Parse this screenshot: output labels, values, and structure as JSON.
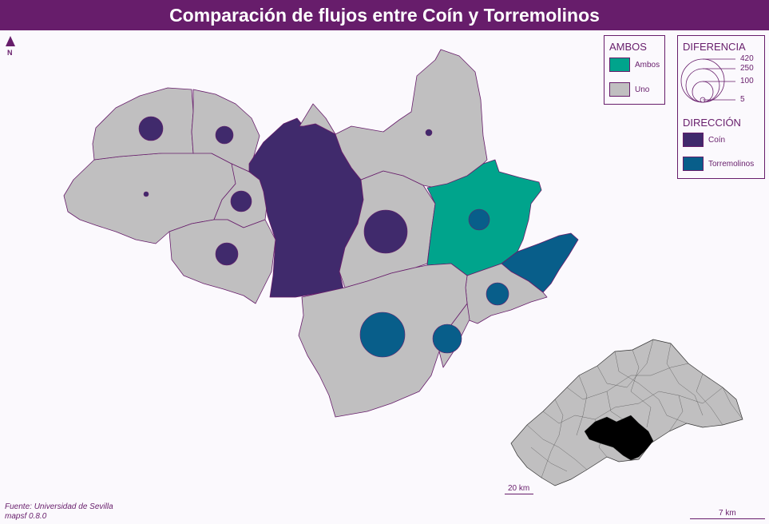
{
  "title": "Comparación de flujos entre Coín y Torremolinos",
  "north_label": "N",
  "colors": {
    "title_bg": "#671d6b",
    "coin": "#402a6c",
    "torremolinos": "#085e8a",
    "ambos": "#00a48c",
    "uno": "#c0bfc0",
    "border": "#671d6b",
    "locator_highlight": "#000000"
  },
  "legend_ambos": {
    "title": "AMBOS",
    "items": [
      {
        "label": "Ambos",
        "color": "#00a48c"
      },
      {
        "label": "Uno",
        "color": "#c0bfc0"
      }
    ]
  },
  "legend_diferencia": {
    "title": "DIFERENCIA",
    "values": [
      "420",
      "250",
      "100",
      "5"
    ]
  },
  "legend_direccion": {
    "title": "DIRECCIÓN",
    "items": [
      {
        "label": "Coín",
        "color": "#402a6c"
      },
      {
        "label": "Torremolinos",
        "color": "#085e8a"
      }
    ]
  },
  "flows": [
    {
      "direction": "Coín",
      "value": 60
    },
    {
      "direction": "Coín",
      "value": 30
    },
    {
      "direction": "Coín",
      "value": 40
    },
    {
      "direction": "Coín",
      "value": 45
    },
    {
      "direction": "Coín",
      "value": 5
    },
    {
      "direction": "Coín",
      "value": 3
    },
    {
      "direction": "Coín",
      "value": 190
    },
    {
      "direction": "Torremolinos",
      "value": 40
    },
    {
      "direction": "Torremolinos",
      "value": 45
    },
    {
      "direction": "Torremolinos",
      "value": 180
    },
    {
      "direction": "Torremolinos",
      "value": 70
    }
  ],
  "scale_inset": "20 km",
  "scale_main": "7 km",
  "source_line1": "Fuente: Universidad de Sevilla",
  "source_line2": "mapsf 0.8.0"
}
